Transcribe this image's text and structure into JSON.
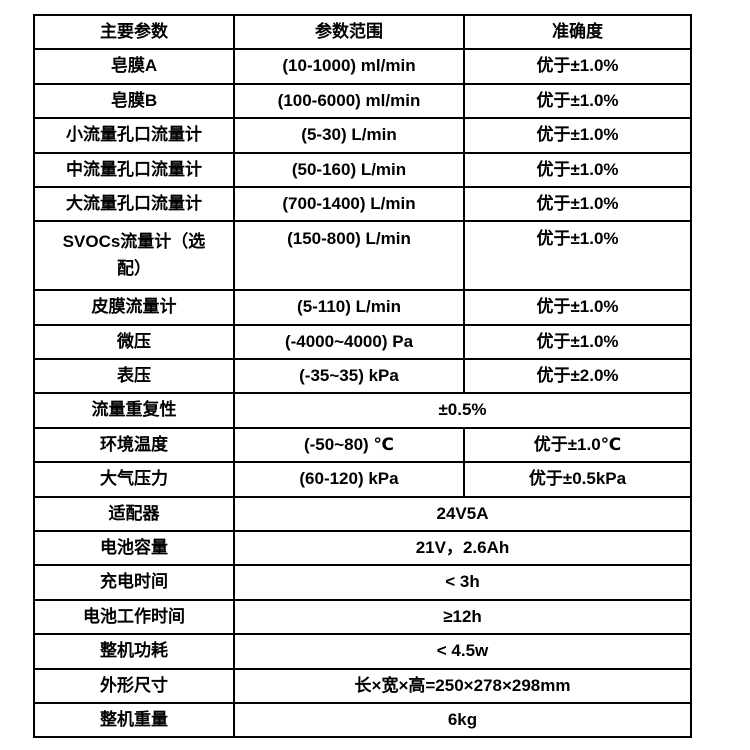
{
  "table": {
    "header": {
      "param": "主要参数",
      "range": "参数范围",
      "accuracy": "准确度"
    },
    "rows": [
      {
        "param": "皂膜A",
        "range": "(10-1000) ml/min",
        "accuracy": "优于±1.0%"
      },
      {
        "param": "皂膜B",
        "range": "(100-6000) ml/min",
        "accuracy": "优于±1.0%"
      },
      {
        "param": "小流量孔口流量计",
        "range": "(5-30) L/min",
        "accuracy": "优于±1.0%"
      },
      {
        "param": "中流量孔口流量计",
        "range": "(50-160) L/min",
        "accuracy": "优于±1.0%"
      },
      {
        "param": "大流量孔口流量计",
        "range": "(700-1400) L/min",
        "accuracy": "优于±1.0%"
      },
      {
        "param": "SVOCs流量计（选\n配）",
        "range": "(150-800) L/min",
        "accuracy": "优于±1.0%"
      },
      {
        "param": "皮膜流量计",
        "range": "(5-110) L/min",
        "accuracy": "优于±1.0%"
      },
      {
        "param": "微压",
        "range": "(-4000~4000) Pa",
        "accuracy": "优于±1.0%"
      },
      {
        "param": "表压",
        "range": "(-35~35) kPa",
        "accuracy": "优于±2.0%"
      },
      {
        "param": "流量重复性",
        "merged": "±0.5%"
      },
      {
        "param": "环境温度",
        "range": "(-50~80) ℃",
        "accuracy": "优于±1.0℃"
      },
      {
        "param": "大气压力",
        "range": "(60-120) kPa",
        "accuracy": "优于±0.5kPa"
      },
      {
        "param": "适配器",
        "merged": "24V5A"
      },
      {
        "param": "电池容量",
        "merged": "21V，2.6Ah"
      },
      {
        "param": "充电时间",
        "merged": "< 3h"
      },
      {
        "param": "电池工作时间",
        "merged": "≥12h"
      },
      {
        "param": "整机功耗",
        "merged": "< 4.5w"
      },
      {
        "param": "外形尺寸",
        "merged": "长×宽×高=250×278×298mm"
      },
      {
        "param": "整机重量",
        "merged": "6kg"
      }
    ]
  }
}
